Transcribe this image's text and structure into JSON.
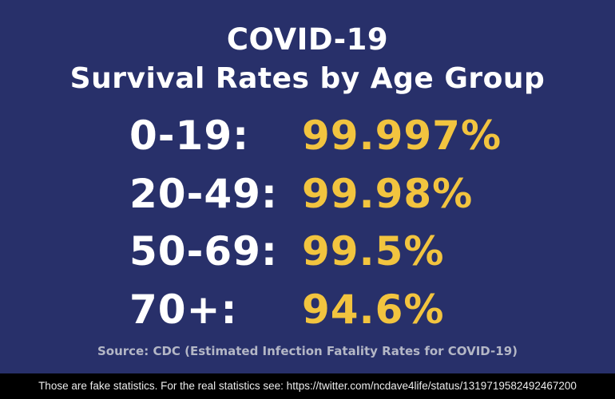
{
  "slide": {
    "title_line1": "COVID-19",
    "title_line2": "Survival Rates by Age Group",
    "rows": [
      {
        "age": "0-19:",
        "rate": "99.997%"
      },
      {
        "age": "20-49:",
        "rate": "99.98%"
      },
      {
        "age": "50-69:",
        "rate": "99.5%"
      },
      {
        "age": "70+:",
        "rate": "94.6%"
      }
    ],
    "source": "Source: CDC (Estimated Infection Fatality Rates for COVID-19)"
  },
  "caption": {
    "text": "Those are fake statistics.  For the real statistics see:  https://twitter.com/ncdave4life/status/1319719582492467200"
  },
  "colors": {
    "background": "#28306a",
    "label": "#ffffff",
    "rate": "#f2c43f",
    "caption_background": "#000000"
  }
}
